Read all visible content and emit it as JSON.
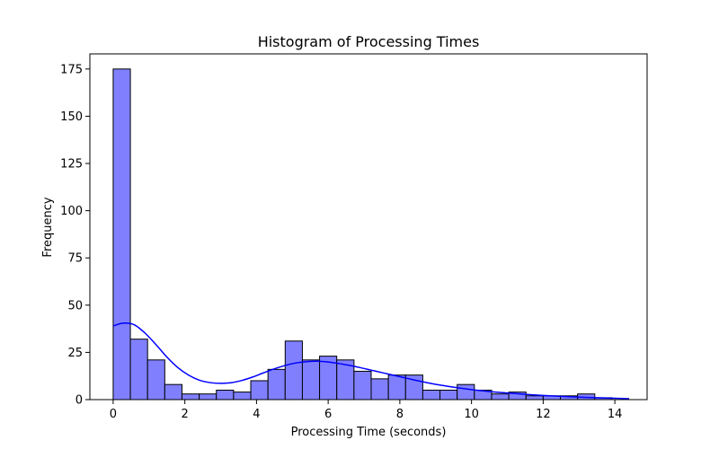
{
  "chart_data": {
    "type": "bar",
    "title": "Histogram of Processing Times",
    "xlabel": "Processing Time (seconds)",
    "ylabel": "Frequency",
    "xlim": [
      -0.65,
      14.9
    ],
    "ylim": [
      0,
      183
    ],
    "xticks": [
      0,
      2,
      4,
      6,
      8,
      10,
      12,
      14
    ],
    "yticks": [
      0,
      25,
      50,
      75,
      100,
      125,
      150,
      175
    ],
    "grid": false,
    "bar_color": "#8080ff",
    "edge_color": "#000000",
    "kde_color": "#0000ff",
    "bins": {
      "start": 0.0,
      "width": 0.48,
      "counts": [
        175,
        32,
        21,
        8,
        3,
        3,
        5,
        4,
        10,
        16,
        31,
        21,
        23,
        21,
        15,
        11,
        13,
        13,
        5,
        5,
        8,
        5,
        3,
        4,
        2,
        2,
        2,
        3,
        1
      ]
    },
    "kde": {
      "x": [
        0.0,
        0.3,
        0.6,
        0.9,
        1.2,
        1.5,
        1.8,
        2.1,
        2.4,
        2.7,
        3.0,
        3.3,
        3.6,
        3.9,
        4.2,
        4.5,
        4.8,
        5.1,
        5.4,
        5.7,
        6.0,
        6.3,
        6.6,
        6.9,
        7.2,
        7.5,
        7.8,
        8.1,
        8.4,
        8.7,
        9.0,
        9.5,
        10.0,
        10.5,
        11.0,
        11.5,
        12.0,
        12.5,
        13.0,
        13.5,
        14.0,
        14.4
      ],
      "y": [
        39,
        40.5,
        39.5,
        35,
        29,
        22.5,
        17,
        13,
        10.3,
        9,
        8.6,
        9,
        10.2,
        12,
        14.2,
        16.3,
        18.1,
        19.4,
        20.1,
        20.3,
        19.9,
        19.1,
        18.1,
        16.9,
        15.6,
        14.3,
        13,
        11.7,
        10.4,
        9.2,
        8.1,
        6.6,
        5.3,
        4.3,
        3.5,
        2.8,
        2.2,
        1.7,
        1.3,
        1.0,
        0.7,
        0.5
      ]
    }
  }
}
